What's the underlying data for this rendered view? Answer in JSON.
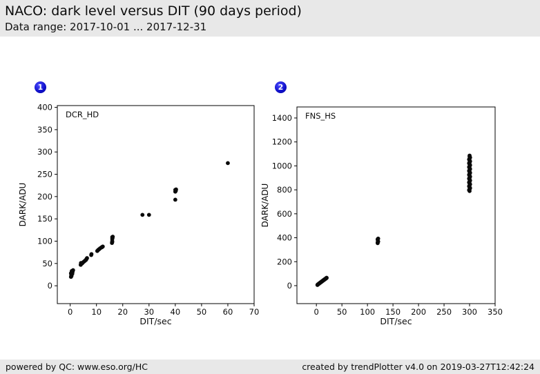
{
  "header": {
    "title": "NACO: dark level versus DIT (90 days period)",
    "date_range": "Data range: 2017-10-01 ... 2017-12-31"
  },
  "badges": [
    {
      "label": "1"
    },
    {
      "label": "2"
    }
  ],
  "footer": {
    "left": "powered by QC: www.eso.org/HC",
    "right": "created by trendPlotter v4.0 on 2019-03-27T12:42:24"
  },
  "colors": {
    "header_bg": "#e8e8e8",
    "footer_bg": "#e8e8e8",
    "badge_blue": "#1111cc",
    "marker": "#0a0a0a",
    "frame": "#000000"
  },
  "chart_data": [
    {
      "type": "scatter",
      "series_label": "DCR_HD",
      "xlabel": "DIT/sec",
      "ylabel": "DARK/ADU",
      "xlim": [
        -4.9,
        70
      ],
      "ylim": [
        -40,
        404
      ],
      "xticks": [
        0,
        10,
        20,
        30,
        40,
        50,
        60,
        70
      ],
      "yticks": [
        0,
        50,
        100,
        150,
        200,
        250,
        300,
        350,
        400
      ],
      "grid": false,
      "legend": "none",
      "points": [
        [
          0.3,
          20
        ],
        [
          0.5,
          22
        ],
        [
          0.4,
          24
        ],
        [
          0.6,
          26
        ],
        [
          0.3,
          28
        ],
        [
          0.7,
          29
        ],
        [
          0.9,
          31
        ],
        [
          0.6,
          33
        ],
        [
          1.0,
          34
        ],
        [
          1.1,
          35
        ],
        [
          0.8,
          27
        ],
        [
          0.5,
          30
        ],
        [
          4.0,
          47
        ],
        [
          4.2,
          49
        ],
        [
          4.1,
          51
        ],
        [
          4.5,
          50
        ],
        [
          4.8,
          52
        ],
        [
          5.2,
          54
        ],
        [
          5.6,
          56
        ],
        [
          6.0,
          58
        ],
        [
          6.2,
          60
        ],
        [
          6.4,
          62
        ],
        [
          8.0,
          69
        ],
        [
          8.1,
          71
        ],
        [
          10.3,
          78
        ],
        [
          10.6,
          80
        ],
        [
          11.0,
          82
        ],
        [
          11.4,
          84
        ],
        [
          11.9,
          86
        ],
        [
          12.2,
          87
        ],
        [
          12.4,
          88
        ],
        [
          15.9,
          96
        ],
        [
          16.0,
          98
        ],
        [
          16.0,
          100
        ],
        [
          16.0,
          105
        ],
        [
          16.1,
          107
        ],
        [
          16.0,
          109
        ],
        [
          16.2,
          110
        ],
        [
          27.5,
          159
        ],
        [
          30.0,
          159
        ],
        [
          40.0,
          193
        ],
        [
          40.0,
          211
        ],
        [
          40.2,
          213
        ],
        [
          40.0,
          215
        ],
        [
          40.3,
          216
        ],
        [
          60.0,
          275
        ]
      ]
    },
    {
      "type": "scatter",
      "series_label": "FNS_HS",
      "xlabel": "DIT/sec",
      "ylabel": "DARK/ADU",
      "xlim": [
        -38.1,
        350
      ],
      "ylim": [
        -150,
        1492
      ],
      "xticks": [
        0,
        50,
        100,
        150,
        200,
        250,
        300,
        350
      ],
      "yticks": [
        0,
        200,
        400,
        600,
        800,
        1000,
        1200,
        1400
      ],
      "grid": false,
      "legend": "none",
      "points": [
        [
          2,
          6
        ],
        [
          2.5,
          8
        ],
        [
          3,
          10
        ],
        [
          3.5,
          12
        ],
        [
          4,
          13
        ],
        [
          4.5,
          15
        ],
        [
          5,
          17
        ],
        [
          5.5,
          18
        ],
        [
          6,
          20
        ],
        [
          6.5,
          22
        ],
        [
          7,
          23
        ],
        [
          7.5,
          25
        ],
        [
          8,
          26
        ],
        [
          8.5,
          28
        ],
        [
          9,
          30
        ],
        [
          9.5,
          31
        ],
        [
          10,
          33
        ],
        [
          10.5,
          34
        ],
        [
          11,
          36
        ],
        [
          11.5,
          38
        ],
        [
          12,
          39
        ],
        [
          12.5,
          41
        ],
        [
          13,
          42
        ],
        [
          13.5,
          44
        ],
        [
          14,
          46
        ],
        [
          14.5,
          47
        ],
        [
          15,
          49
        ],
        [
          15.5,
          50
        ],
        [
          16,
          52
        ],
        [
          16.5,
          54
        ],
        [
          17,
          55
        ],
        [
          17.5,
          57
        ],
        [
          18,
          58
        ],
        [
          18.5,
          60
        ],
        [
          19,
          61
        ],
        [
          19.5,
          63
        ],
        [
          20,
          64
        ],
        [
          20,
          66
        ],
        [
          120,
          355
        ],
        [
          120,
          362
        ],
        [
          121,
          368
        ],
        [
          120,
          383
        ],
        [
          120,
          388
        ],
        [
          121,
          393
        ],
        [
          300,
          790
        ],
        [
          299,
          798
        ],
        [
          300,
          806
        ],
        [
          301,
          814
        ],
        [
          300,
          822
        ],
        [
          299,
          830
        ],
        [
          300,
          838
        ],
        [
          301,
          846
        ],
        [
          300,
          854
        ],
        [
          299,
          862
        ],
        [
          300,
          870
        ],
        [
          301,
          878
        ],
        [
          300,
          886
        ],
        [
          299,
          894
        ],
        [
          300,
          902
        ],
        [
          301,
          910
        ],
        [
          300,
          918
        ],
        [
          299,
          926
        ],
        [
          300,
          934
        ],
        [
          301,
          942
        ],
        [
          300,
          950
        ],
        [
          299,
          958
        ],
        [
          300,
          966
        ],
        [
          301,
          974
        ],
        [
          300,
          982
        ],
        [
          299,
          990
        ],
        [
          300,
          998
        ],
        [
          301,
          1006
        ],
        [
          300,
          1014
        ],
        [
          299,
          1022
        ],
        [
          300,
          1030
        ],
        [
          301,
          1038
        ],
        [
          300,
          1046
        ],
        [
          299,
          1054
        ],
        [
          300,
          1062
        ],
        [
          301,
          1070
        ],
        [
          300,
          1078
        ],
        [
          300,
          1086
        ]
      ]
    }
  ]
}
